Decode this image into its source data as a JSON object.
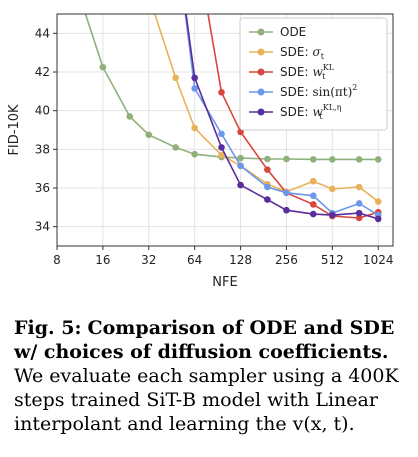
{
  "chart_data": {
    "type": "line",
    "xlabel": "NFE",
    "ylabel": "FID-10K",
    "x_scale": "log2",
    "xlim": [
      8,
      1280
    ],
    "ylim": [
      33,
      45
    ],
    "x_ticks": [
      "8",
      "16",
      "32",
      "64",
      "128",
      "256",
      "512",
      "1024"
    ],
    "y_ticks": [
      "34",
      "36",
      "38",
      "40",
      "42",
      "44"
    ],
    "grid": true,
    "legend_position": "top-right",
    "series": [
      {
        "name": "ODE",
        "color": "#8fb07a",
        "x": [
          8,
          16,
          24,
          32,
          48,
          64,
          96,
          128,
          192,
          256,
          384,
          512,
          768,
          1024
        ],
        "y": [
          49.5,
          42.25,
          39.7,
          38.75,
          38.1,
          37.75,
          37.6,
          37.55,
          37.5,
          37.5,
          37.48,
          37.48,
          37.48,
          37.48
        ]
      },
      {
        "name": "SDE: σt",
        "color": "#e8b25a",
        "x": [
          24,
          48,
          64,
          96,
          128,
          192,
          256,
          384,
          512,
          768,
          1024
        ],
        "y": [
          49.0,
          41.7,
          39.1,
          37.7,
          37.15,
          36.2,
          35.8,
          36.35,
          35.95,
          36.05,
          35.3
        ]
      },
      {
        "name": "SDE: wtKL",
        "color": "#d9463e",
        "x": [
          64,
          96,
          128,
          192,
          256,
          384,
          512,
          768,
          1024
        ],
        "y": [
          49.0,
          40.95,
          38.9,
          36.95,
          35.75,
          35.15,
          34.55,
          34.45,
          34.75
        ]
      },
      {
        "name": "SDE: sin(πt)2",
        "color": "#6d97e8",
        "x": [
          48,
          64,
          96,
          128,
          192,
          256,
          384,
          512,
          768,
          1024
        ],
        "y": [
          49.0,
          41.15,
          38.8,
          37.15,
          36.05,
          35.75,
          35.6,
          34.7,
          35.2,
          34.6
        ]
      },
      {
        "name": "SDE: wtKL,η",
        "color": "#5a2d9c",
        "x": [
          48,
          64,
          96,
          128,
          192,
          256,
          384,
          512,
          768,
          1024
        ],
        "y": [
          49.0,
          41.7,
          38.1,
          36.15,
          35.4,
          34.85,
          34.65,
          34.6,
          34.7,
          34.4
        ]
      }
    ]
  },
  "legend": {
    "ode": "ODE",
    "sde_prefix": "SDE:",
    "sigma_t": "σ",
    "sigma_sub": "t",
    "w": "w",
    "w_sub": "t",
    "w_sup_kl": "KL",
    "sin_text": "sin(πt)",
    "sin_sup": "2",
    "w_sup_kl_eta": "KL,η"
  },
  "caption": {
    "label": "Fig. 5:",
    "bold_text": "Comparison of ODE and SDE w/ choices of diffusion coefficients.",
    "text": "We evaluate each sampler using a 400K steps trained SiT-B model with Linear interpolant and learning the v(x, t)."
  }
}
